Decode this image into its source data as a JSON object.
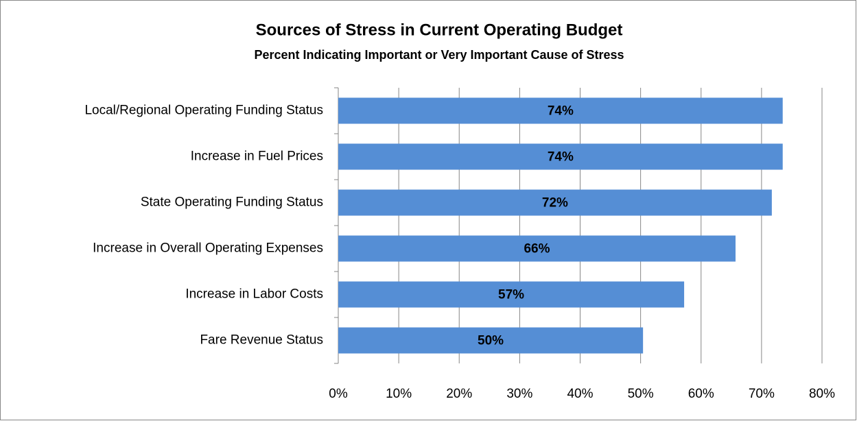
{
  "chart_data": {
    "type": "bar",
    "orientation": "horizontal",
    "title": "Sources of Stress in Current Operating Budget",
    "subtitle": "Percent Indicating Important or Very Important Cause of Stress",
    "categories": [
      "Local/Regional Operating Funding Status",
      "Increase in Fuel Prices",
      "State Operating Funding Status",
      "Increase in Overall Operating Expenses",
      "Increase in Labor Costs",
      "Fare Revenue Status"
    ],
    "values": [
      73.5,
      73.5,
      71.7,
      65.7,
      57.2,
      50.4
    ],
    "value_labels": [
      "74%",
      "74%",
      "72%",
      "66%",
      "57%",
      "50%"
    ],
    "color": "#558ed5",
    "xlim": [
      0,
      80
    ],
    "xticks": [
      {
        "value": 0,
        "label": "0%"
      },
      {
        "value": 10,
        "label": "10%"
      },
      {
        "value": 20,
        "label": "20%"
      },
      {
        "value": 30,
        "label": "30%"
      },
      {
        "value": 40,
        "label": "40%"
      },
      {
        "value": 50,
        "label": "50%"
      },
      {
        "value": 60,
        "label": "60%"
      },
      {
        "value": 70,
        "label": "70%"
      },
      {
        "value": 80,
        "label": "80%"
      }
    ],
    "grid": true
  }
}
